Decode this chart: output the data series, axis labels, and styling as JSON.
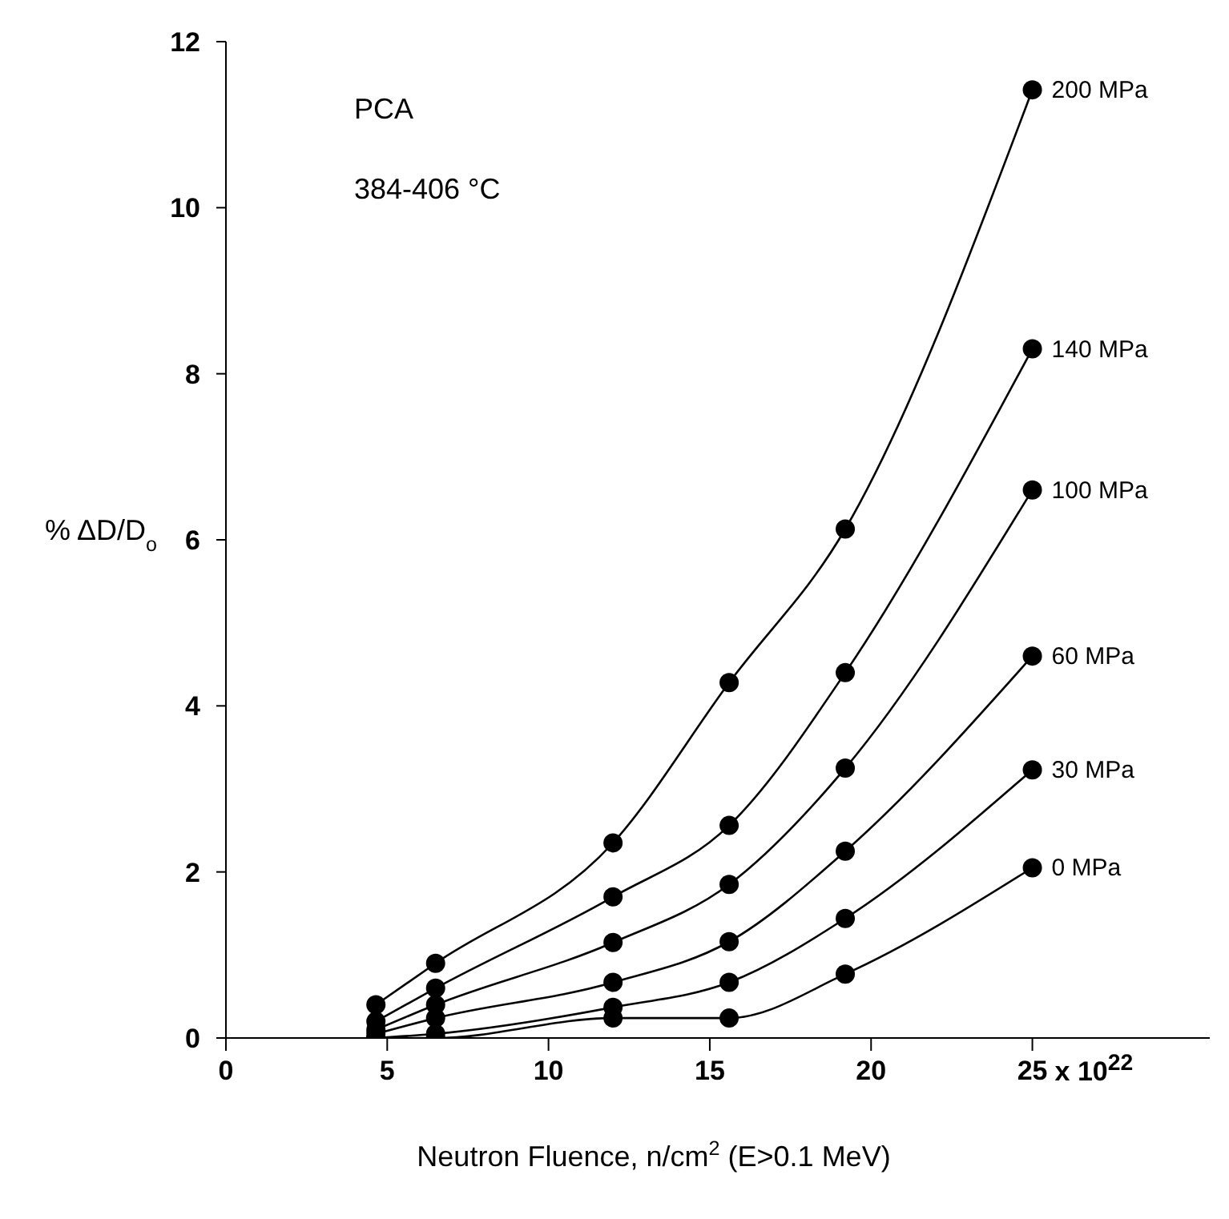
{
  "chart_data": {
    "type": "line",
    "annotations": [
      "PCA",
      "384-406 °C",
      "x 10$^{22}$"
    ],
    "xlabel": "Neutron Fluence, n/cm$^{2}$ (E>0.1 MeV)",
    "ylabel": "% ΔD/D$_{o}$",
    "x": [
      4.65,
      6.5,
      12,
      15.6,
      19.2,
      25
    ],
    "series": [
      {
        "name": "200 MPa",
        "color": "#000000",
        "values": [
          0.4,
          0.9,
          2.35,
          4.28,
          6.13,
          11.42
        ]
      },
      {
        "name": "140 MPa",
        "color": "#000000",
        "values": [
          0.2,
          0.6,
          1.7,
          2.56,
          4.4,
          8.3
        ]
      },
      {
        "name": "100 MPa",
        "color": "#000000",
        "values": [
          0.1,
          0.4,
          1.15,
          1.85,
          3.25,
          6.6
        ]
      },
      {
        "name": "60 MPa",
        "color": "#000000",
        "values": [
          0.05,
          0.24,
          0.67,
          1.16,
          2.25,
          4.6
        ]
      },
      {
        "name": "30 MPa",
        "color": "#000000",
        "values": [
          0,
          0.05,
          0.37,
          0.67,
          1.44,
          3.23
        ]
      },
      {
        "name": "0 MPa",
        "color": "#000000",
        "values": [
          0,
          0,
          0.24,
          0.24,
          0.77,
          2.05
        ]
      }
    ],
    "xlim": [
      0,
      30.5
    ],
    "xticks": [
      0,
      5,
      10,
      15,
      20,
      25
    ],
    "ylim": [
      0,
      12
    ],
    "yticks": [
      0,
      2,
      4,
      6,
      8,
      10,
      12
    ],
    "marker": "circle",
    "line_style": "solid"
  }
}
